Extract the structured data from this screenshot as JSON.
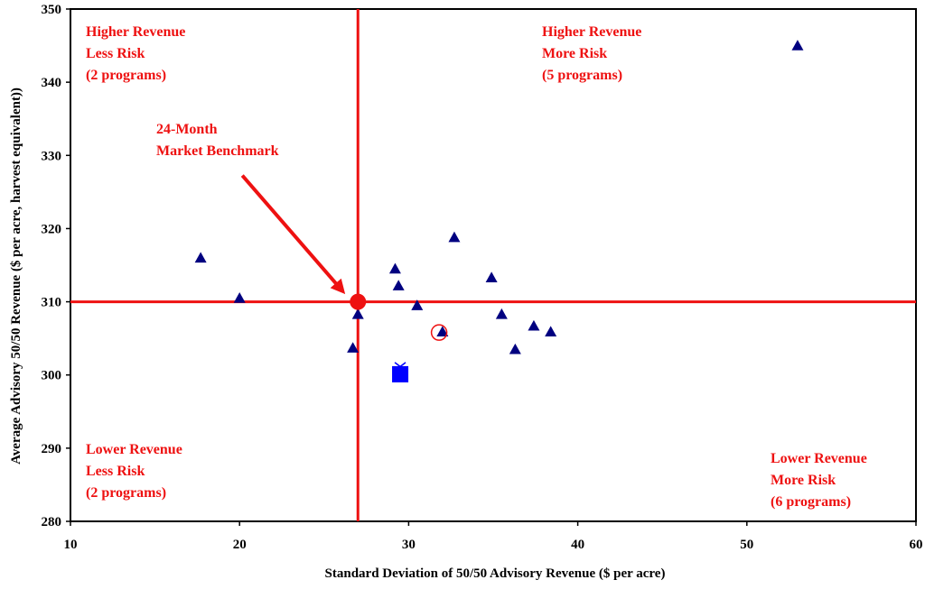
{
  "chart_data": {
    "type": "scatter",
    "xlabel": "Standard Deviation of 50/50 Advisory Revenue ($ per acre)",
    "ylabel": "Average Advisory 50/50 Revenue ($ per acre, harvest equivalent))",
    "xlim": [
      10,
      60
    ],
    "ylim": [
      280,
      350
    ],
    "xticks": [
      "10",
      "20",
      "30",
      "40",
      "50",
      "60"
    ],
    "yticks": [
      "280",
      "290",
      "300",
      "310",
      "320",
      "330",
      "340",
      "350"
    ],
    "grid": false,
    "programs": [
      {
        "x": 17.7,
        "y": 316.0
      },
      {
        "x": 20.0,
        "y": 310.5
      },
      {
        "x": 26.7,
        "y": 303.7
      },
      {
        "x": 27.0,
        "y": 308.3
      },
      {
        "x": 29.2,
        "y": 314.5
      },
      {
        "x": 29.4,
        "y": 312.2
      },
      {
        "x": 30.5,
        "y": 309.5
      },
      {
        "x": 32.0,
        "y": 305.9
      },
      {
        "x": 32.7,
        "y": 318.8
      },
      {
        "x": 34.9,
        "y": 313.3
      },
      {
        "x": 35.5,
        "y": 308.3
      },
      {
        "x": 36.3,
        "y": 303.5
      },
      {
        "x": 37.4,
        "y": 306.7
      },
      {
        "x": 38.4,
        "y": 305.9
      },
      {
        "x": 53.0,
        "y": 345.0
      }
    ],
    "benchmark": {
      "x": 27.0,
      "y": 310.0
    },
    "open_circle": {
      "x": 31.8,
      "y": 305.8
    },
    "square": {
      "x": 29.5,
      "y": 300.1
    },
    "divider": {
      "x": 27.0,
      "y": 310.0
    },
    "annotation": {
      "lines": [
        "24-Month",
        "Market Benchmark"
      ]
    },
    "quadrants": [
      {
        "id": "top-left",
        "lines": [
          "Higher Revenue",
          "Less Risk",
          "(2 programs)"
        ]
      },
      {
        "id": "top-right",
        "lines": [
          "Higher Revenue",
          "More Risk",
          "(5 programs)"
        ]
      },
      {
        "id": "bottom-left",
        "lines": [
          "Lower Revenue",
          "Less Risk",
          "(2 programs)"
        ]
      },
      {
        "id": "bottom-right",
        "lines": [
          "Lower Revenue",
          "More Risk",
          "(6 programs)"
        ]
      }
    ],
    "colors": {
      "red": "#ee1111",
      "program_marker": "#000080",
      "square": "#0000ff"
    }
  }
}
